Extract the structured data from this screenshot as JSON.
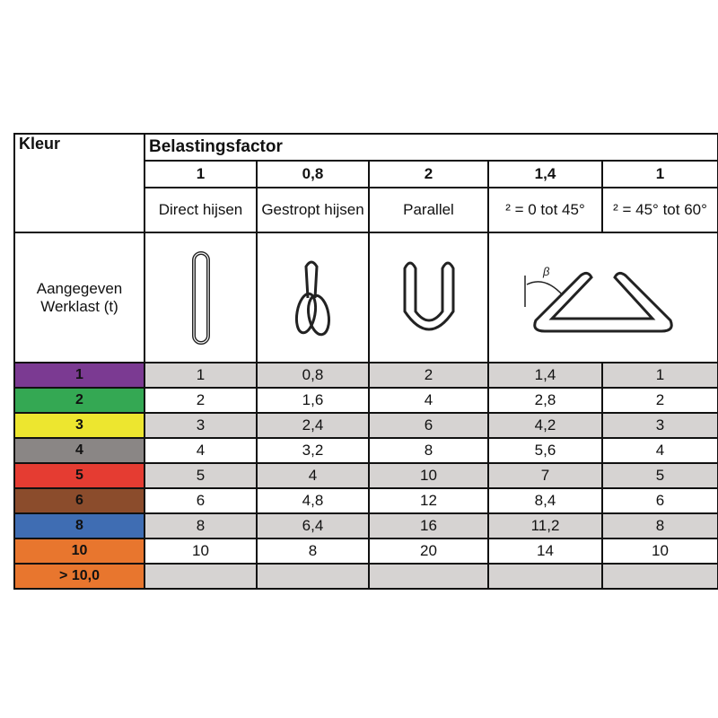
{
  "header": {
    "kleur": "Kleur",
    "belastingsfactor": "Belastingsfactor",
    "factors": [
      "1",
      "0,8",
      "2",
      "1,4",
      "1"
    ],
    "methods": [
      "Direct hijsen",
      "Gestropt hijsen",
      "Parallel",
      "² = 0 tot 45°",
      "² = 45° tot 60°"
    ],
    "werklast": "Aangegeven Werklast (t)",
    "beta_label": "β"
  },
  "rows": [
    {
      "kleur": "1",
      "color": "#7b3a92",
      "values": [
        "1",
        "0,8",
        "2",
        "1,4",
        "1"
      ]
    },
    {
      "kleur": "2",
      "color": "#34a853",
      "values": [
        "2",
        "1,6",
        "4",
        "2,8",
        "2"
      ]
    },
    {
      "kleur": "3",
      "color": "#ede62f",
      "values": [
        "3",
        "2,4",
        "6",
        "4,2",
        "3"
      ]
    },
    {
      "kleur": "4",
      "color": "#8a8685",
      "values": [
        "4",
        "3,2",
        "8",
        "5,6",
        "4"
      ]
    },
    {
      "kleur": "5",
      "color": "#e53c32",
      "values": [
        "5",
        "4",
        "10",
        "7",
        "5"
      ]
    },
    {
      "kleur": "6",
      "color": "#8b4c2c",
      "values": [
        "6",
        "4,8",
        "12",
        "8,4",
        "6"
      ]
    },
    {
      "kleur": "8",
      "color": "#3f6db3",
      "values": [
        "8",
        "6,4",
        "16",
        "11,2",
        "8"
      ]
    },
    {
      "kleur": "10",
      "color": "#e8762e",
      "values": [
        "10",
        "8",
        "20",
        "14",
        "10"
      ]
    },
    {
      "kleur": "> 10,0",
      "color": "#e8762e",
      "values": [
        "",
        "",
        "",
        "",
        ""
      ]
    }
  ]
}
